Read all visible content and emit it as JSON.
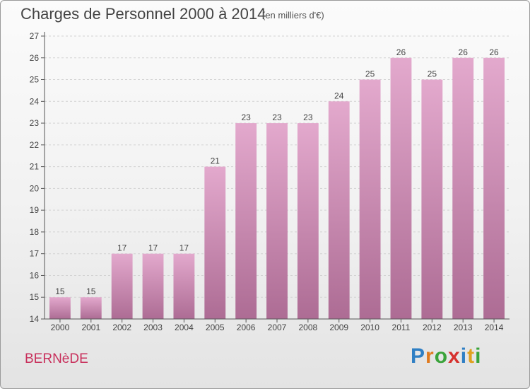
{
  "chart_data": {
    "type": "bar",
    "title": "Charges de Personnel 2000 à 2014",
    "subtitle": "(en milliers d'€)",
    "categories": [
      "2000",
      "2001",
      "2002",
      "2003",
      "2004",
      "2005",
      "2006",
      "2007",
      "2008",
      "2009",
      "2010",
      "2011",
      "2012",
      "2013",
      "2014"
    ],
    "values": [
      15,
      15,
      17,
      17,
      17,
      21,
      23,
      23,
      23,
      24,
      25,
      26,
      25,
      26,
      26
    ],
    "ylim": [
      14,
      27
    ],
    "yticks": [
      14,
      15,
      16,
      17,
      18,
      19,
      20,
      21,
      22,
      23,
      24,
      25,
      26,
      27
    ],
    "grid": true,
    "bar_color": "#c97fa8"
  },
  "footer": {
    "commune": "BERNèDE",
    "logo_letters": [
      {
        "char": "P",
        "color": "#2f7fc4"
      },
      {
        "char": "r",
        "color": "#e07a1e"
      },
      {
        "char": "o",
        "color": "#3aa33a"
      },
      {
        "char": "x",
        "color": "#d6312e"
      },
      {
        "char": "i",
        "color": "#2f7fc4"
      },
      {
        "char": "t",
        "color": "#e0a01e"
      },
      {
        "char": "i",
        "color": "#3aa33a"
      }
    ]
  }
}
